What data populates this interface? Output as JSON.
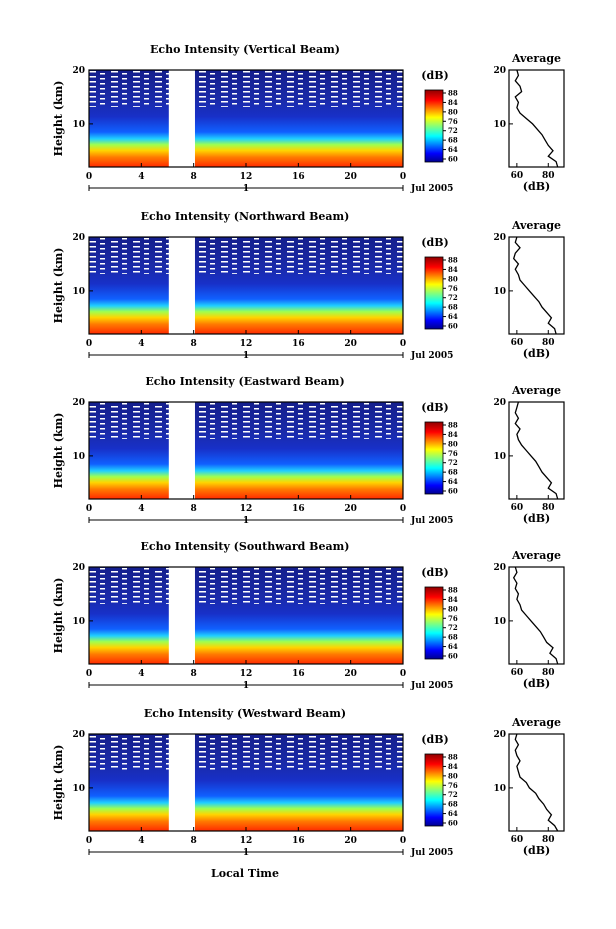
{
  "chart_data": [
    {
      "type": "heatmap",
      "title": "Echo Intensity (Vertical Beam)",
      "ylabel": "Height (km)",
      "x_ticks": [
        "0",
        "4",
        "8",
        "12",
        "16",
        "20",
        "0"
      ],
      "y_ticks": [
        "20",
        "10"
      ],
      "xlim": [
        0,
        24
      ],
      "ylim": [
        2,
        20
      ],
      "date_marker": "1",
      "date_label": "Jul 2005",
      "colorbar": {
        "unit": "(dB)",
        "ticks": [
          "88",
          "84",
          "80",
          "76",
          "72",
          "68",
          "64",
          "60"
        ],
        "range": [
          60,
          88
        ]
      },
      "data_gap_hours": [
        6.1,
        8.1
      ],
      "average_profile": {
        "title": "Average",
        "xlabel": "(dB)",
        "x_ticks": [
          "60",
          "80"
        ],
        "y_ticks": [
          "20",
          "10"
        ],
        "height_km": [
          2,
          3,
          4,
          5,
          6,
          7,
          8,
          9,
          10,
          11,
          12,
          13,
          14,
          15,
          16,
          17,
          18,
          19,
          20
        ],
        "echo_db": [
          86,
          85,
          80,
          83,
          80,
          78,
          76,
          73,
          70,
          66,
          62,
          60,
          61,
          59,
          63,
          62,
          59,
          61,
          60
        ]
      }
    },
    {
      "type": "heatmap",
      "title": "Echo Intensity (Northward Beam)",
      "ylabel": "Height (km)",
      "x_ticks": [
        "0",
        "4",
        "8",
        "12",
        "16",
        "20",
        "0"
      ],
      "y_ticks": [
        "20",
        "10"
      ],
      "xlim": [
        0,
        24
      ],
      "ylim": [
        2,
        20
      ],
      "date_marker": "1",
      "date_label": "Jul 2005",
      "colorbar": {
        "unit": "(dB)",
        "ticks": [
          "88",
          "84",
          "80",
          "76",
          "72",
          "68",
          "64",
          "60"
        ],
        "range": [
          60,
          88
        ]
      },
      "data_gap_hours": [
        6.1,
        8.1
      ],
      "average_profile": {
        "title": "Average",
        "xlabel": "(dB)",
        "x_ticks": [
          "60",
          "80"
        ],
        "y_ticks": [
          "20",
          "10"
        ],
        "height_km": [
          2,
          3,
          4,
          5,
          6,
          7,
          8,
          9,
          10,
          11,
          12,
          13,
          14,
          15,
          16,
          17,
          18,
          19,
          20
        ],
        "echo_db": [
          85,
          84,
          80,
          82,
          79,
          76,
          74,
          71,
          68,
          65,
          62,
          61,
          59,
          61,
          58,
          59,
          62,
          59,
          60
        ]
      }
    },
    {
      "type": "heatmap",
      "title": "Echo Intensity (Eastward Beam)",
      "ylabel": "Height (km)",
      "x_ticks": [
        "0",
        "4",
        "8",
        "12",
        "16",
        "20",
        "0"
      ],
      "y_ticks": [
        "20",
        "10"
      ],
      "xlim": [
        0,
        24
      ],
      "ylim": [
        2,
        20
      ],
      "date_marker": "1",
      "date_label": "Jul 2005",
      "colorbar": {
        "unit": "(dB)",
        "ticks": [
          "88",
          "84",
          "80",
          "76",
          "72",
          "68",
          "64",
          "60"
        ],
        "range": [
          60,
          88
        ]
      },
      "data_gap_hours": [
        6.1,
        8.1
      ],
      "average_profile": {
        "title": "Average",
        "xlabel": "(dB)",
        "x_ticks": [
          "60",
          "80"
        ],
        "y_ticks": [
          "20",
          "10"
        ],
        "height_km": [
          2,
          3,
          4,
          5,
          6,
          7,
          8,
          9,
          10,
          11,
          12,
          13,
          14,
          15,
          16,
          17,
          18,
          19,
          20
        ],
        "echo_db": [
          86,
          85,
          80,
          82,
          79,
          76,
          74,
          72,
          69,
          66,
          63,
          61,
          60,
          62,
          59,
          61,
          59,
          60,
          61
        ]
      }
    },
    {
      "type": "heatmap",
      "title": "Echo Intensity (Southward Beam)",
      "ylabel": "Height (km)",
      "x_ticks": [
        "0",
        "4",
        "8",
        "12",
        "16",
        "20",
        "0"
      ],
      "y_ticks": [
        "20",
        "10"
      ],
      "xlim": [
        0,
        24
      ],
      "ylim": [
        2,
        20
      ],
      "date_marker": "1",
      "date_label": "Jul 2005",
      "colorbar": {
        "unit": "(dB)",
        "ticks": [
          "88",
          "84",
          "80",
          "76",
          "72",
          "68",
          "64",
          "60"
        ],
        "range": [
          60,
          88
        ]
      },
      "data_gap_hours": [
        6.1,
        8.1
      ],
      "average_profile": {
        "title": "Average",
        "xlabel": "(dB)",
        "x_ticks": [
          "60",
          "80"
        ],
        "y_ticks": [
          "20",
          "10"
        ],
        "height_km": [
          2,
          3,
          4,
          5,
          6,
          7,
          8,
          9,
          10,
          11,
          12,
          13,
          14,
          15,
          16,
          17,
          18,
          19,
          20
        ],
        "echo_db": [
          86,
          85,
          81,
          83,
          79,
          77,
          75,
          72,
          69,
          66,
          63,
          62,
          60,
          61,
          59,
          60,
          58,
          60,
          59
        ]
      }
    },
    {
      "type": "heatmap",
      "title": "Echo Intensity (Westward Beam)",
      "ylabel": "Height (km)",
      "xlabel": "Local Time",
      "x_ticks": [
        "0",
        "4",
        "8",
        "12",
        "16",
        "20",
        "0"
      ],
      "y_ticks": [
        "20",
        "10"
      ],
      "xlim": [
        0,
        24
      ],
      "ylim": [
        2,
        20
      ],
      "date_marker": "1",
      "date_label": "Jul 2005",
      "colorbar": {
        "unit": "(dB)",
        "ticks": [
          "88",
          "84",
          "80",
          "76",
          "72",
          "68",
          "64",
          "60"
        ],
        "range": [
          60,
          88
        ]
      },
      "data_gap_hours": [
        6.1,
        8.1
      ],
      "average_profile": {
        "title": "Average",
        "xlabel": "(dB)",
        "x_ticks": [
          "60",
          "80"
        ],
        "y_ticks": [
          "20",
          "10"
        ],
        "height_km": [
          2,
          3,
          4,
          5,
          6,
          7,
          8,
          9,
          10,
          11,
          12,
          13,
          14,
          15,
          16,
          17,
          18,
          19,
          20
        ],
        "echo_db": [
          86,
          84,
          80,
          82,
          79,
          77,
          74,
          72,
          68,
          66,
          62,
          61,
          60,
          62,
          60,
          59,
          61,
          59,
          60
        ]
      }
    }
  ]
}
